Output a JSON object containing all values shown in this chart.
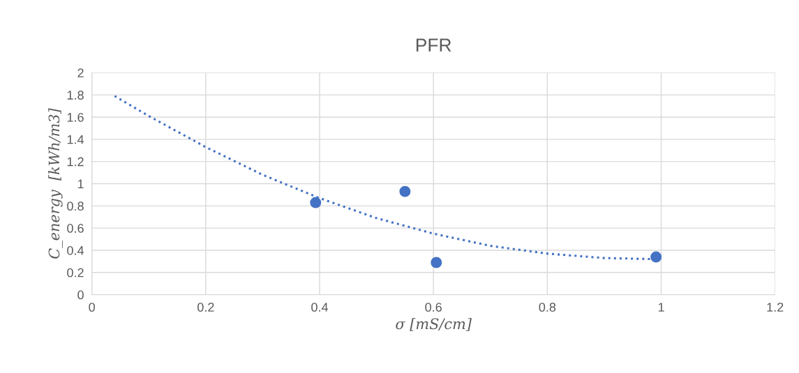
{
  "chart_data": {
    "type": "scatter",
    "title": "PFR",
    "xlabel": "σ [mS/cm]",
    "ylabel": "C_energy  [kWh/m3]",
    "xlim": [
      0,
      1.2
    ],
    "xticks": [
      0,
      0.2,
      0.4,
      0.6,
      0.8,
      1,
      1.2
    ],
    "ylim": [
      0,
      2
    ],
    "yticks": [
      0,
      0.2,
      0.4,
      0.6,
      0.8,
      1,
      1.2,
      1.4,
      1.6,
      1.8,
      2
    ],
    "grid": true,
    "legend": false,
    "series": [
      {
        "color": "#4472c4",
        "marker": "circle",
        "x": [
          0.393,
          0.55,
          0.605,
          0.991
        ],
        "values": [
          0.83,
          0.93,
          0.29,
          0.34
        ]
      },
      {
        "type": "line",
        "color": "#4472c4",
        "line_style": "dotted",
        "marker": "none",
        "x": [
          0.04,
          0.1,
          0.2,
          0.3,
          0.4,
          0.5,
          0.6,
          0.7,
          0.8,
          0.9,
          0.99
        ],
        "values": [
          1.79,
          1.61,
          1.33,
          1.08,
          0.87,
          0.69,
          0.55,
          0.44,
          0.37,
          0.33,
          0.32
        ]
      }
    ]
  }
}
